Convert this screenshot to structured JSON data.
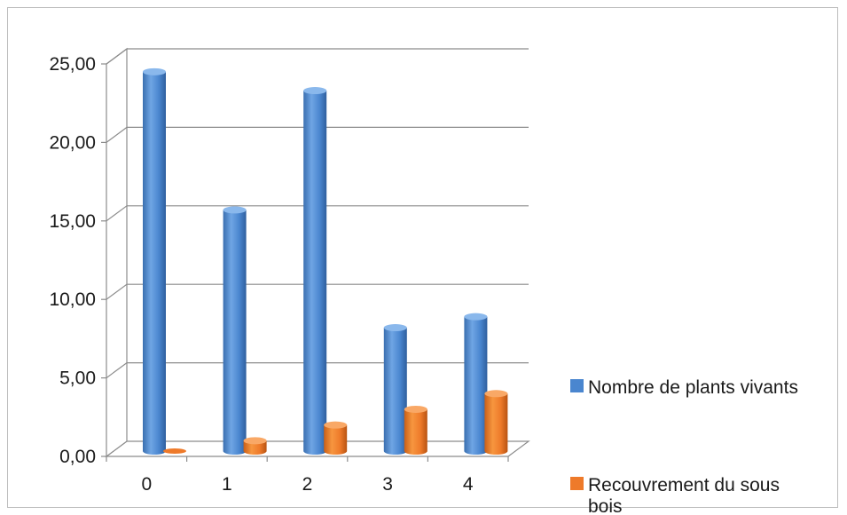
{
  "chart_data": {
    "type": "bar",
    "categories": [
      "0",
      "1",
      "2",
      "3",
      "4"
    ],
    "series": [
      {
        "name": "Nombre de plants vivants",
        "values": [
          24.5,
          15.7,
          23.3,
          8.2,
          8.9
        ],
        "color": "#4a86cf"
      },
      {
        "name": "Recouvrement du sous bois",
        "values": [
          0.1,
          1.0,
          2.0,
          3.0,
          4.0
        ],
        "color": "#ee7a2a"
      }
    ],
    "y_ticks": [
      "0,00",
      "5,00",
      "10,00",
      "15,00",
      "20,00",
      "25,00"
    ],
    "ylim": [
      0,
      25
    ],
    "grid": true,
    "legend_position": "right-bottom",
    "legend_labels": {
      "series1": "Nombre de plants vivants",
      "series2_line1": "Recouvrement du sous",
      "series2_line2": "bois"
    }
  }
}
